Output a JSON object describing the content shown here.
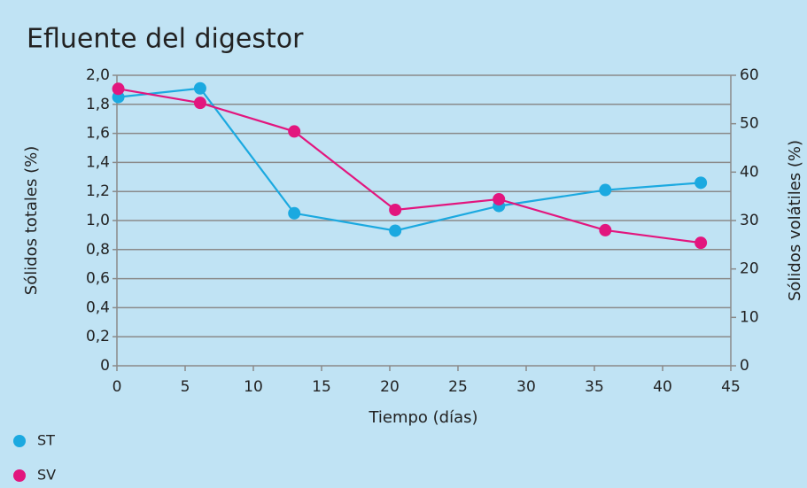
{
  "chart_data": {
    "type": "line",
    "title": "Efluente del digestor",
    "xlabel": "Tiempo (días)",
    "ylabel": "Sólidos totales (%)",
    "y2label": "Sólidos volátiles (%)",
    "x": [
      0.1,
      6.1,
      13,
      20.4,
      28,
      35.8,
      42.8
    ],
    "series": [
      {
        "name": "ST",
        "color": "#1ba9e0",
        "values": [
          1.85,
          1.91,
          1.05,
          0.93,
          1.1,
          1.21,
          1.26
        ]
      },
      {
        "name": "SV",
        "color": "#e2167e",
        "axis": "y2",
        "values": [
          57.2,
          54.3,
          48.4,
          32.2,
          34.4,
          28,
          25.4
        ]
      }
    ],
    "xlim": [
      0,
      45
    ],
    "xticks": [
      0,
      5,
      10,
      15,
      20,
      25,
      30,
      35,
      40,
      45
    ],
    "ylim": [
      0,
      2
    ],
    "yticks": [
      0,
      {
        "value": 0.2,
        "label": "0,2"
      },
      {
        "value": 0.4,
        "label": "0,4"
      },
      {
        "value": 0.6,
        "label": "0,6"
      },
      {
        "value": 0.8,
        "label": "0,8"
      },
      {
        "value": 1,
        "label": "1,0"
      },
      {
        "value": 1.2,
        "label": "1,2"
      },
      {
        "value": 1.4,
        "label": "1,4"
      },
      {
        "value": 1.6,
        "label": "1,6"
      },
      {
        "value": 1.8,
        "label": "1,8"
      },
      {
        "value": 2,
        "label": "2,0"
      }
    ],
    "y2lim": [
      0,
      60
    ],
    "y2ticks": [
      0,
      10,
      20,
      30,
      40,
      50,
      60
    ],
    "grid": true,
    "legend": "bottom-left"
  }
}
